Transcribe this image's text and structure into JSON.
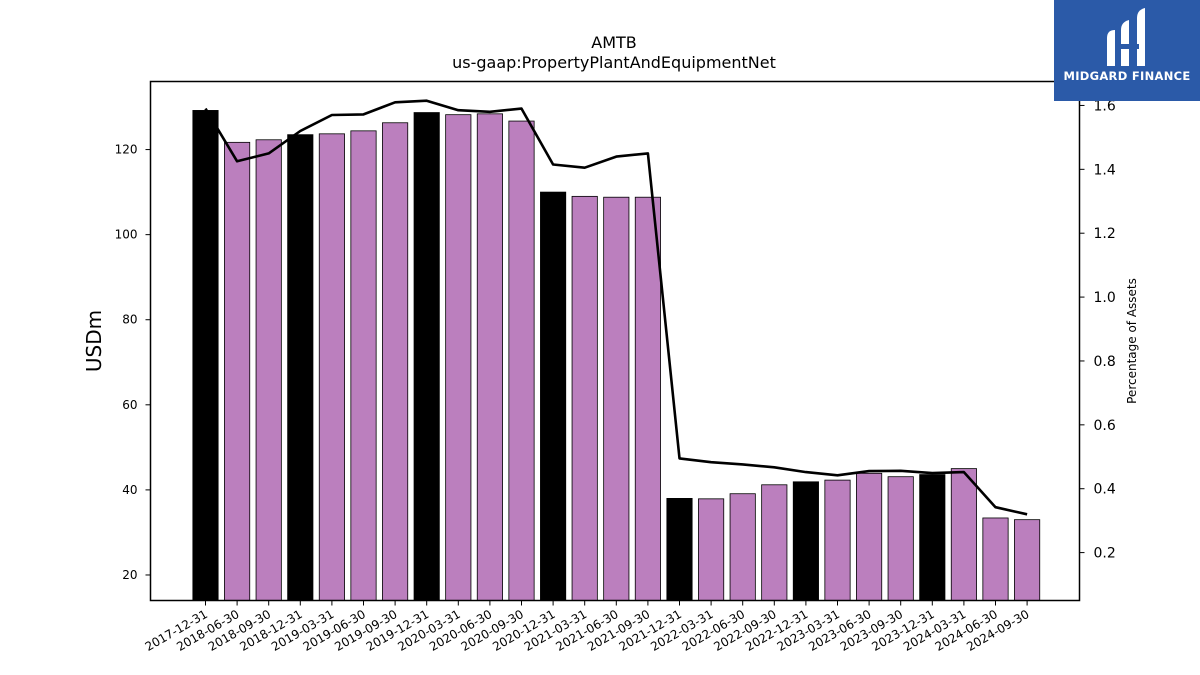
{
  "chart_data": {
    "type": "bar",
    "title": "AMTB",
    "subtitle": "us-gaap:PropertyPlantAndEquipmentNet",
    "ylabel": "USDm",
    "y2label": "Percentage of Assets",
    "ylim": [
      14,
      136
    ],
    "y2lim": [
      0.05,
      1.675
    ],
    "yticks": [
      20,
      40,
      60,
      80,
      100,
      120
    ],
    "y2ticks": [
      0.2,
      0.4,
      0.6,
      0.8,
      1.0,
      1.2,
      1.4,
      1.6
    ],
    "categories": [
      "2017-12-31",
      "2018-06-30",
      "2018-09-30",
      "2018-12-31",
      "2019-03-31",
      "2019-06-30",
      "2019-09-30",
      "2019-12-31",
      "2020-03-31",
      "2020-06-30",
      "2020-09-30",
      "2020-12-31",
      "2021-03-31",
      "2021-06-30",
      "2021-09-30",
      "2021-12-31",
      "2022-03-31",
      "2022-06-30",
      "2022-09-30",
      "2022-12-31",
      "2023-03-31",
      "2023-06-30",
      "2023-09-30",
      "2023-12-31",
      "2024-03-31",
      "2024-06-30",
      "2024-09-30"
    ],
    "values": [
      129.2,
      121.7,
      122.3,
      123.5,
      123.7,
      124.4,
      126.3,
      128.7,
      128.2,
      128.4,
      126.7,
      110.0,
      109.0,
      108.8,
      108.8,
      38.0,
      37.9,
      39.1,
      41.2,
      41.9,
      42.3,
      43.9,
      43.1,
      43.6,
      45.0,
      33.4,
      33.0
    ],
    "year_end": [
      true,
      false,
      false,
      true,
      false,
      false,
      false,
      true,
      false,
      false,
      false,
      true,
      false,
      false,
      false,
      true,
      false,
      false,
      false,
      true,
      false,
      false,
      false,
      true,
      false,
      false,
      false
    ],
    "line_values": [
      1.59,
      1.425,
      1.45,
      1.52,
      1.57,
      1.572,
      1.61,
      1.615,
      1.585,
      1.58,
      1.59,
      1.415,
      1.405,
      1.44,
      1.45,
      0.495,
      0.483,
      0.476,
      0.467,
      0.452,
      0.442,
      0.455,
      0.456,
      0.449,
      0.452,
      0.342,
      0.32
    ],
    "colors": {
      "year_end_bar": "#000000",
      "quarter_bar": "#bb7fbe",
      "line": "#000000"
    }
  },
  "logo": {
    "text": "MIDGARD FINANCE",
    "background": "#2b5aa8"
  }
}
